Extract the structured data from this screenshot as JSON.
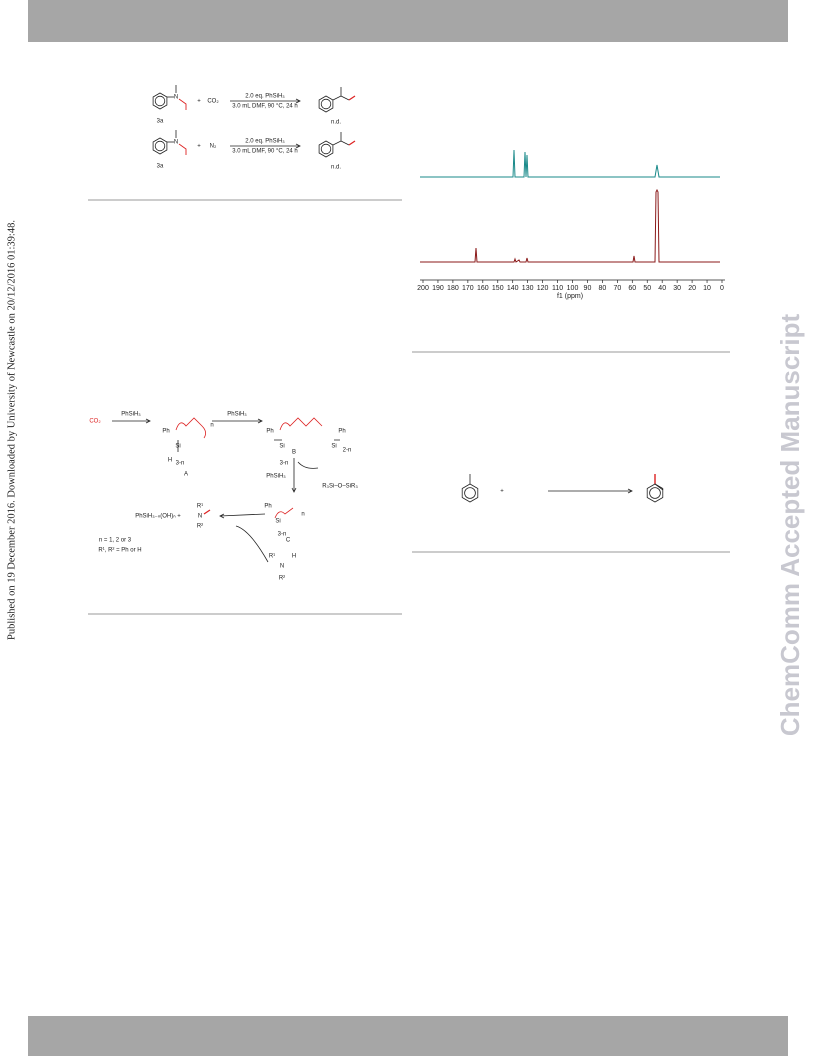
{
  "side_note": "Published on 19 December 2016. Downloaded by University of Newcastle on 20/12/2016 01:39:48.",
  "watermark": "ChemComm Accepted Manuscript",
  "scheme_1": {
    "rows": [
      {
        "compound": "3a",
        "plus": "+",
        "reagent": "CO₂",
        "conditions_top": "2.0 eq. PhSiH₃",
        "conditions_bottom": "3.0 mL DMF, 90 °C, 24 h",
        "result": "n.d."
      },
      {
        "compound": "3a",
        "plus": "+",
        "reagent": "N₂",
        "conditions_top": "2.0 eq. PhSiH₃",
        "conditions_bottom": "3.0 mL DMF, 90 °C, 24 h",
        "result": "n.d."
      }
    ]
  },
  "nmr_figure": {
    "axis_ticks": [
      "200",
      "190",
      "180",
      "170",
      "160",
      "150",
      "140",
      "130",
      "120",
      "110",
      "100",
      "90",
      "80",
      "70",
      "60",
      "50",
      "40",
      "30",
      "20",
      "10",
      "0"
    ],
    "axis_label": "f1 (ppm)"
  },
  "scheme_2": {
    "co2": "CO₂",
    "reagent_1": "PhSiH₃",
    "reagent_2": "PhSiH₃",
    "reagent_3": "PhSiH₃",
    "label_a": "A",
    "label_b": "B",
    "label_c": "C",
    "ph_a": "Ph",
    "si_a": "Si",
    "h_a": "H",
    "sub_a": "3-n",
    "n_a": "n",
    "ph_b1": "Ph",
    "ph_b2": "Ph",
    "si_b1": "Si",
    "si_b2": "Si",
    "sub_b": "3-n",
    "n_b": "2-n",
    "byproduct": "R₃Si–O–SiR₃",
    "ph_c": "Ph",
    "si_c": "Si",
    "sub_c": "3-n",
    "n_c": "n",
    "product_left": "PhSiH₃₋ₙ(OH)ₙ +",
    "product_r1": "R¹",
    "product_n": "N",
    "product_r2": "R²",
    "amine_r1": "R¹",
    "amine_n": "N",
    "amine_h": "H",
    "amine_r2": "R²",
    "note_n": "n = 1, 2 or 3",
    "note_r": "R¹, R² = Ph or H"
  },
  "scheme_3": {
    "plus": "+"
  }
}
